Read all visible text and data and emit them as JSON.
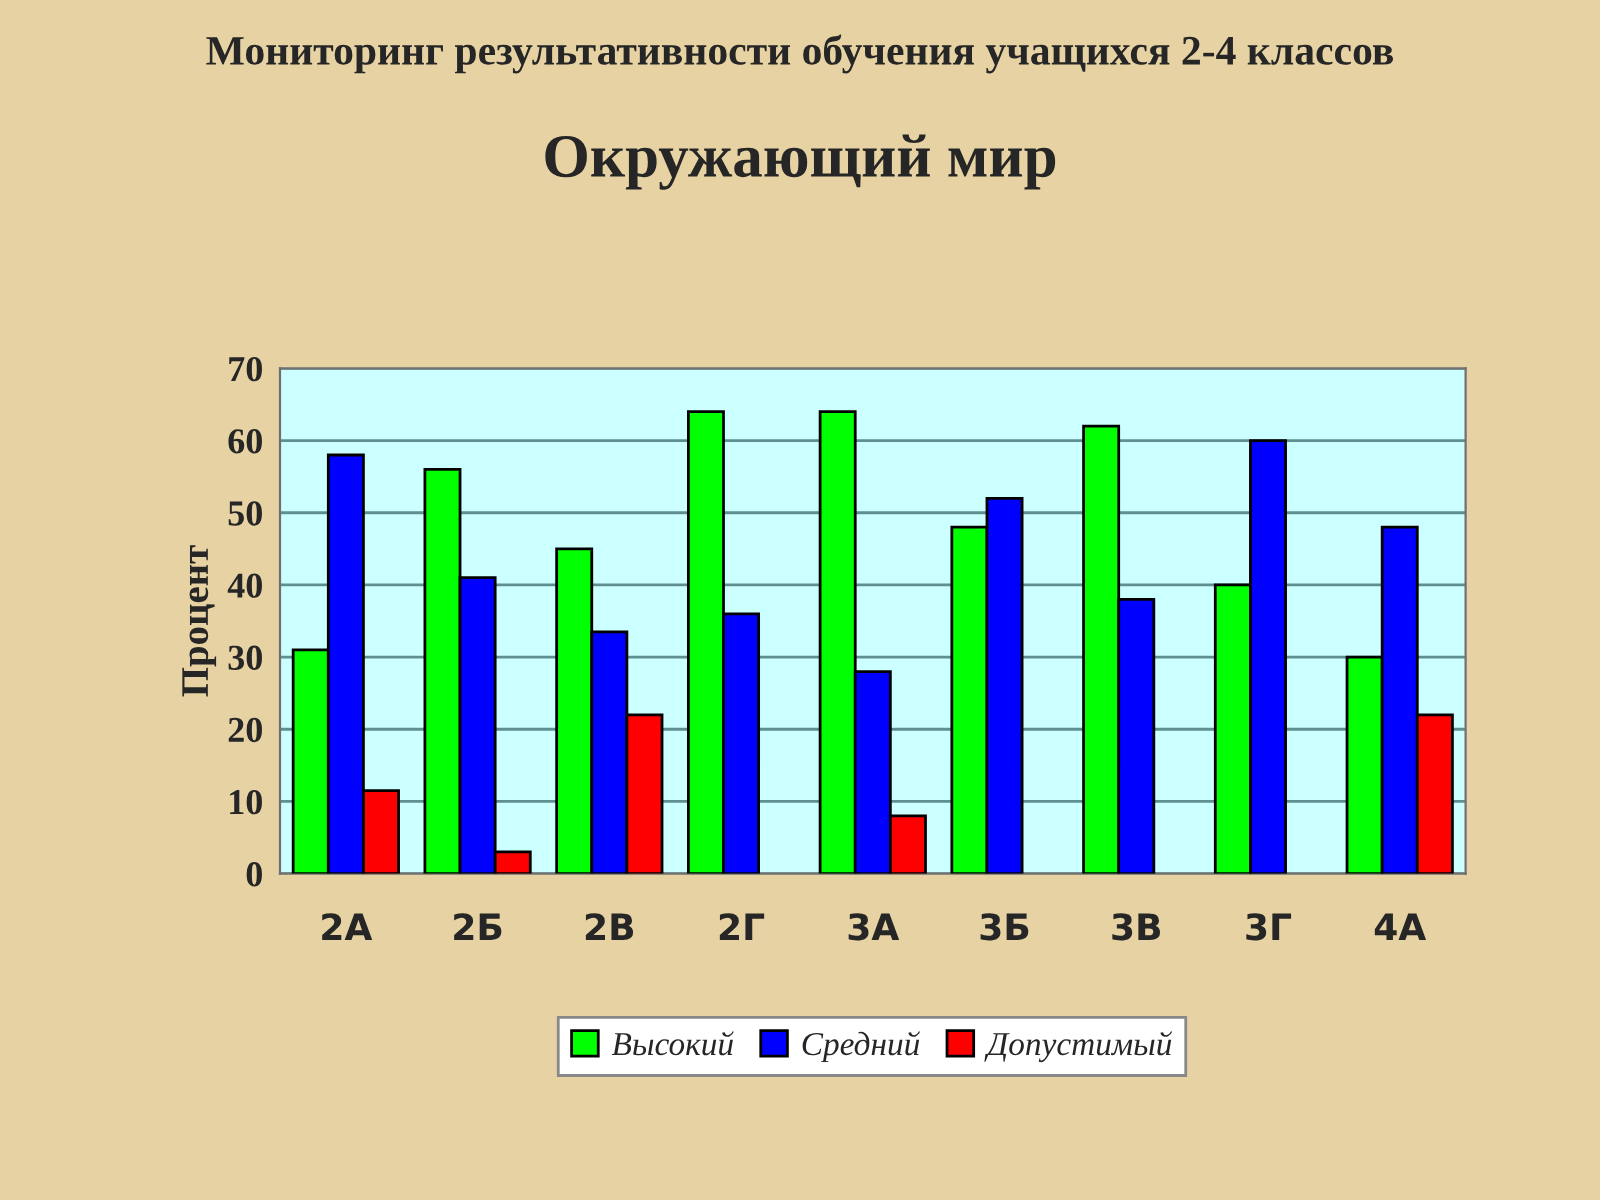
{
  "chart_data": {
    "type": "bar",
    "title": "Мониторинг результативности обучения учащихся 2-4 классов",
    "subtitle": "Окружающий мир",
    "ylabel": "Процент",
    "categories": [
      "2А",
      "2Б",
      "2В",
      "2Г",
      "3А",
      "3Б",
      "3В",
      "3Г",
      "4А"
    ],
    "series": [
      {
        "name": "Высокий",
        "color": "#00ff00",
        "values": [
          31,
          56,
          45,
          64,
          64,
          48,
          62,
          40,
          30
        ]
      },
      {
        "name": "Средний",
        "color": "#0000ff",
        "values": [
          58,
          41,
          33.5,
          36,
          28,
          52,
          38,
          60,
          48
        ]
      },
      {
        "name": "Допустимый",
        "color": "#ff0000",
        "values": [
          11.5,
          3,
          22,
          null,
          8,
          null,
          null,
          null,
          22
        ]
      }
    ],
    "ylim": [
      0,
      70
    ],
    "yticks": [
      0,
      10,
      20,
      30,
      40,
      50,
      60,
      70
    ],
    "grid": "y",
    "legend": "bottom"
  }
}
